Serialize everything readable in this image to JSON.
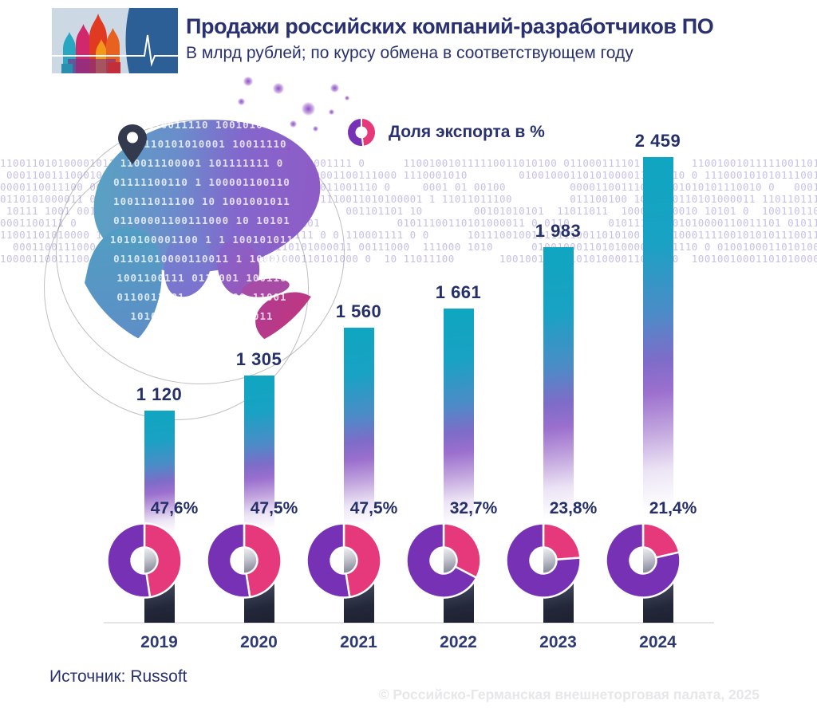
{
  "header": {
    "title": "Продажи российских компаний-разработчиков ПО",
    "subtitle": "В млрд рублей; по курсу обмена в соответствующем году"
  },
  "legend": {
    "label": "Доля экспорта в %"
  },
  "footer": {
    "source": "Источник: Russoft",
    "copyright": "© Российско-Германская внешнеторговая палата, 2025"
  },
  "colors": {
    "navy": "#2a3170",
    "bar_teal_top": "#0fa6c2",
    "bar_purple_mid": "#8a5fc9",
    "bar_dark_bottom": "#23273a",
    "donut_purple": "#7731b5",
    "donut_pink": "#e6397b",
    "binary_text": "#c7c0e6",
    "axis_line": "#e3e3e8"
  },
  "chart_data": {
    "type": "bar",
    "title": "Продажи российских компаний-разработчиков ПО",
    "subtitle": "В млрд рублей; по курсу обмена в соответствующем году",
    "categories": [
      "2019",
      "2020",
      "2021",
      "2022",
      "2023",
      "2024"
    ],
    "series": [
      {
        "name": "Продажи, млрд рублей",
        "values": [
          1120,
          1305,
          1560,
          1661,
          1983,
          2459
        ]
      },
      {
        "name": "Доля экспорта в %",
        "values": [
          47.6,
          47.5,
          47.5,
          32.7,
          23.8,
          21.4
        ]
      }
    ],
    "value_labels": [
      "1 120",
      "1 305",
      "1 560",
      "1 661",
      "1 983",
      "2 459"
    ],
    "percent_labels": [
      "47,6%",
      "47,5%",
      "47,5%",
      "32,7%",
      "23,8%",
      "21,4%"
    ],
    "ylim": [
      0,
      2459
    ],
    "grid": false,
    "legend_position": "top",
    "source": "Russoft"
  },
  "decor": {
    "binary_rows": [
      "110011010100001011  100100101111100110101 0  0110001111 0      110010010111110011010100 011000111101        11001001011111001101010 0",
      " 0001100111000101 11100010101011100100100011010100001100111000 1110001010        01001000110101000011001110 0 111000101010111001001000",
      "0000110011100 001   0001010101110010 0         000011001110 0     0001 01 00100          0000110011100  001010101110010 0   0001100111",
      "0110101000011 0 0101 1101101110001010101110010 0101110011010100001 1 11011011100         011100100 1011100110101000011 110110111000101",
      " 10111 1001 0011011011100011110010101010 1            001101101 10        00101010101  11011011  100011110010 10101 0  1001101101110 0",
      "0001100111 0        010111001101010000110 0   1101            01011100110101000011 0 0110      010111001101010000110011101 01011100110",
      "11001101010000 1100011110010101010111001001011111 0 0 110001111 0 0      101110010010111110011010100 0  1100011110010101011100110101000",
      "  0001100111000 1  111000101010111001001000110101000011 00111000  111000 1010      01001000110101000011001110 0 0100100011010100001100",
      "10000110011100 0 1010 11011100    0111001001000110101000 0  10 11011100       1001001000110101000011001110  100100100011010100001100111"
    ],
    "globe_rows": [
      "0110011110 1001010",
      "1100110101010001 10011110",
      "110011100001 101111111 0",
      "01111100110 1 100001100110",
      "100111011100 10 1001001011",
      "01100001100111000 10 10101",
      "1010100001100 1 1 100101011",
      "01101010000110011 1 100110",
      "1001100111 0111001 100110",
      "0110011101 01010000 11001",
      "101010000110011 10011",
      "0110111001"
    ]
  }
}
